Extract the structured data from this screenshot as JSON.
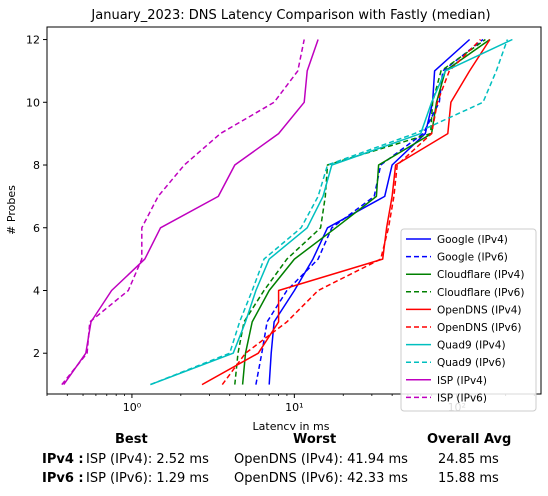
{
  "chart_data": {
    "type": "line",
    "title": "January_2023: DNS Latency Comparison with Fastly (median)",
    "xlabel": "Latency in ms",
    "ylabel": "# Probes",
    "xscale": "log",
    "xlim": [
      0.3,
      330
    ],
    "ylim": [
      0.7,
      12.4
    ],
    "xticks": [
      {
        "v": 1,
        "label": "10⁰"
      },
      {
        "v": 10,
        "label": "10¹"
      },
      {
        "v": 100,
        "label": "10²"
      }
    ],
    "yticks": [
      2,
      4,
      6,
      8,
      10,
      12
    ],
    "legend_position": "lower-right",
    "grid": false,
    "series": [
      {
        "name": "Google (IPv4)",
        "color": "#0000ff",
        "dash": false,
        "points": [
          [
            7,
            1
          ],
          [
            7.2,
            2
          ],
          [
            7.5,
            3
          ],
          [
            10,
            4
          ],
          [
            13,
            5
          ],
          [
            16,
            6
          ],
          [
            36,
            7
          ],
          [
            40,
            8
          ],
          [
            64,
            9
          ],
          [
            71,
            10
          ],
          [
            73,
            11
          ],
          [
            120,
            12
          ]
        ]
      },
      {
        "name": "Google (IPv6)",
        "color": "#0000ff",
        "dash": true,
        "points": [
          [
            5.8,
            1
          ],
          [
            6.3,
            2
          ],
          [
            6.8,
            3
          ],
          [
            9,
            4
          ],
          [
            14,
            5
          ],
          [
            17,
            6
          ],
          [
            31,
            7
          ],
          [
            34,
            8
          ],
          [
            62,
            9
          ],
          [
            78,
            10
          ],
          [
            82,
            11
          ],
          [
            145,
            12
          ]
        ]
      },
      {
        "name": "Cloudflare (IPv4)",
        "color": "#008000",
        "dash": false,
        "points": [
          [
            4.8,
            1
          ],
          [
            5,
            2
          ],
          [
            5.5,
            3
          ],
          [
            7,
            4
          ],
          [
            10,
            5
          ],
          [
            18,
            6
          ],
          [
            32,
            7
          ],
          [
            33,
            8
          ],
          [
            70,
            9
          ],
          [
            75,
            10
          ],
          [
            85,
            11
          ],
          [
            160,
            12
          ]
        ]
      },
      {
        "name": "Cloudflare (IPv6)",
        "color": "#008000",
        "dash": true,
        "points": [
          [
            4.3,
            1
          ],
          [
            4.5,
            2
          ],
          [
            4.9,
            3
          ],
          [
            6.5,
            4
          ],
          [
            9,
            5
          ],
          [
            14.5,
            6
          ],
          [
            15.5,
            7
          ],
          [
            16,
            8
          ],
          [
            69,
            9
          ],
          [
            71,
            10
          ],
          [
            80,
            11
          ],
          [
            150,
            12
          ]
        ]
      },
      {
        "name": "OpenDNS (IPv4)",
        "color": "#ff0000",
        "dash": false,
        "points": [
          [
            2.7,
            1
          ],
          [
            6,
            2
          ],
          [
            8,
            3
          ],
          [
            8,
            4
          ],
          [
            35,
            5
          ],
          [
            37,
            6
          ],
          [
            40,
            7
          ],
          [
            42,
            8
          ],
          [
            88,
            9
          ],
          [
            92,
            10
          ],
          [
            120,
            11
          ],
          [
            160,
            12
          ]
        ]
      },
      {
        "name": "OpenDNS (IPv6)",
        "color": "#ff0000",
        "dash": true,
        "points": [
          [
            3.6,
            1
          ],
          [
            5,
            2
          ],
          [
            9,
            3
          ],
          [
            14,
            4
          ],
          [
            34,
            5
          ],
          [
            38,
            6
          ],
          [
            41,
            7
          ],
          [
            43,
            8
          ],
          [
            70,
            9
          ],
          [
            76,
            10
          ],
          [
            90,
            11
          ],
          [
            140,
            12
          ]
        ]
      },
      {
        "name": "Quad9 (IPv4)",
        "color": "#00bfbf",
        "dash": false,
        "points": [
          [
            1.3,
            1
          ],
          [
            4.2,
            2
          ],
          [
            5,
            3
          ],
          [
            5.8,
            4
          ],
          [
            7,
            5
          ],
          [
            12,
            6
          ],
          [
            15,
            7
          ],
          [
            17,
            8
          ],
          [
            60,
            9
          ],
          [
            70,
            10
          ],
          [
            85,
            11
          ],
          [
            220,
            12
          ]
        ]
      },
      {
        "name": "Quad9 (IPv6)",
        "color": "#00bfbf",
        "dash": true,
        "points": [
          [
            1.3,
            1
          ],
          [
            4,
            2
          ],
          [
            4.6,
            3
          ],
          [
            5.5,
            4
          ],
          [
            6.5,
            5
          ],
          [
            11,
            6
          ],
          [
            14,
            7
          ],
          [
            16,
            8
          ],
          [
            55,
            9
          ],
          [
            145,
            10
          ],
          [
            175,
            11
          ],
          [
            205,
            12
          ]
        ]
      },
      {
        "name": "ISP (IPv4)",
        "color": "#bf00bf",
        "dash": false,
        "points": [
          [
            0.38,
            1
          ],
          [
            0.52,
            2
          ],
          [
            0.56,
            3
          ],
          [
            0.75,
            4
          ],
          [
            1.2,
            5
          ],
          [
            1.5,
            6
          ],
          [
            3.4,
            7
          ],
          [
            4.3,
            8
          ],
          [
            8,
            9
          ],
          [
            11.5,
            10
          ],
          [
            12,
            11
          ],
          [
            14,
            12
          ]
        ]
      },
      {
        "name": "ISP (IPv6)",
        "color": "#bf00bf",
        "dash": true,
        "points": [
          [
            0.37,
            1
          ],
          [
            0.53,
            2
          ],
          [
            0.55,
            3
          ],
          [
            0.95,
            4
          ],
          [
            1.15,
            5
          ],
          [
            1.15,
            6
          ],
          [
            1.45,
            7
          ],
          [
            2.1,
            8
          ],
          [
            3.5,
            9
          ],
          [
            7.5,
            10
          ],
          [
            10.5,
            11
          ],
          [
            11.5,
            12
          ]
        ]
      }
    ]
  },
  "summary": {
    "headers": {
      "best": "Best",
      "worst": "Worst",
      "avg": "Overall Avg"
    },
    "rows": [
      {
        "label": "IPv4 :",
        "best": "ISP (IPv4): 2.52 ms",
        "worst": "OpenDNS (IPv4): 41.94 ms",
        "avg": "24.85 ms"
      },
      {
        "label": "IPv6 :",
        "best": "ISP (IPv6): 1.29 ms",
        "worst": "OpenDNS (IPv6): 42.33 ms",
        "avg": "15.88 ms"
      }
    ]
  }
}
